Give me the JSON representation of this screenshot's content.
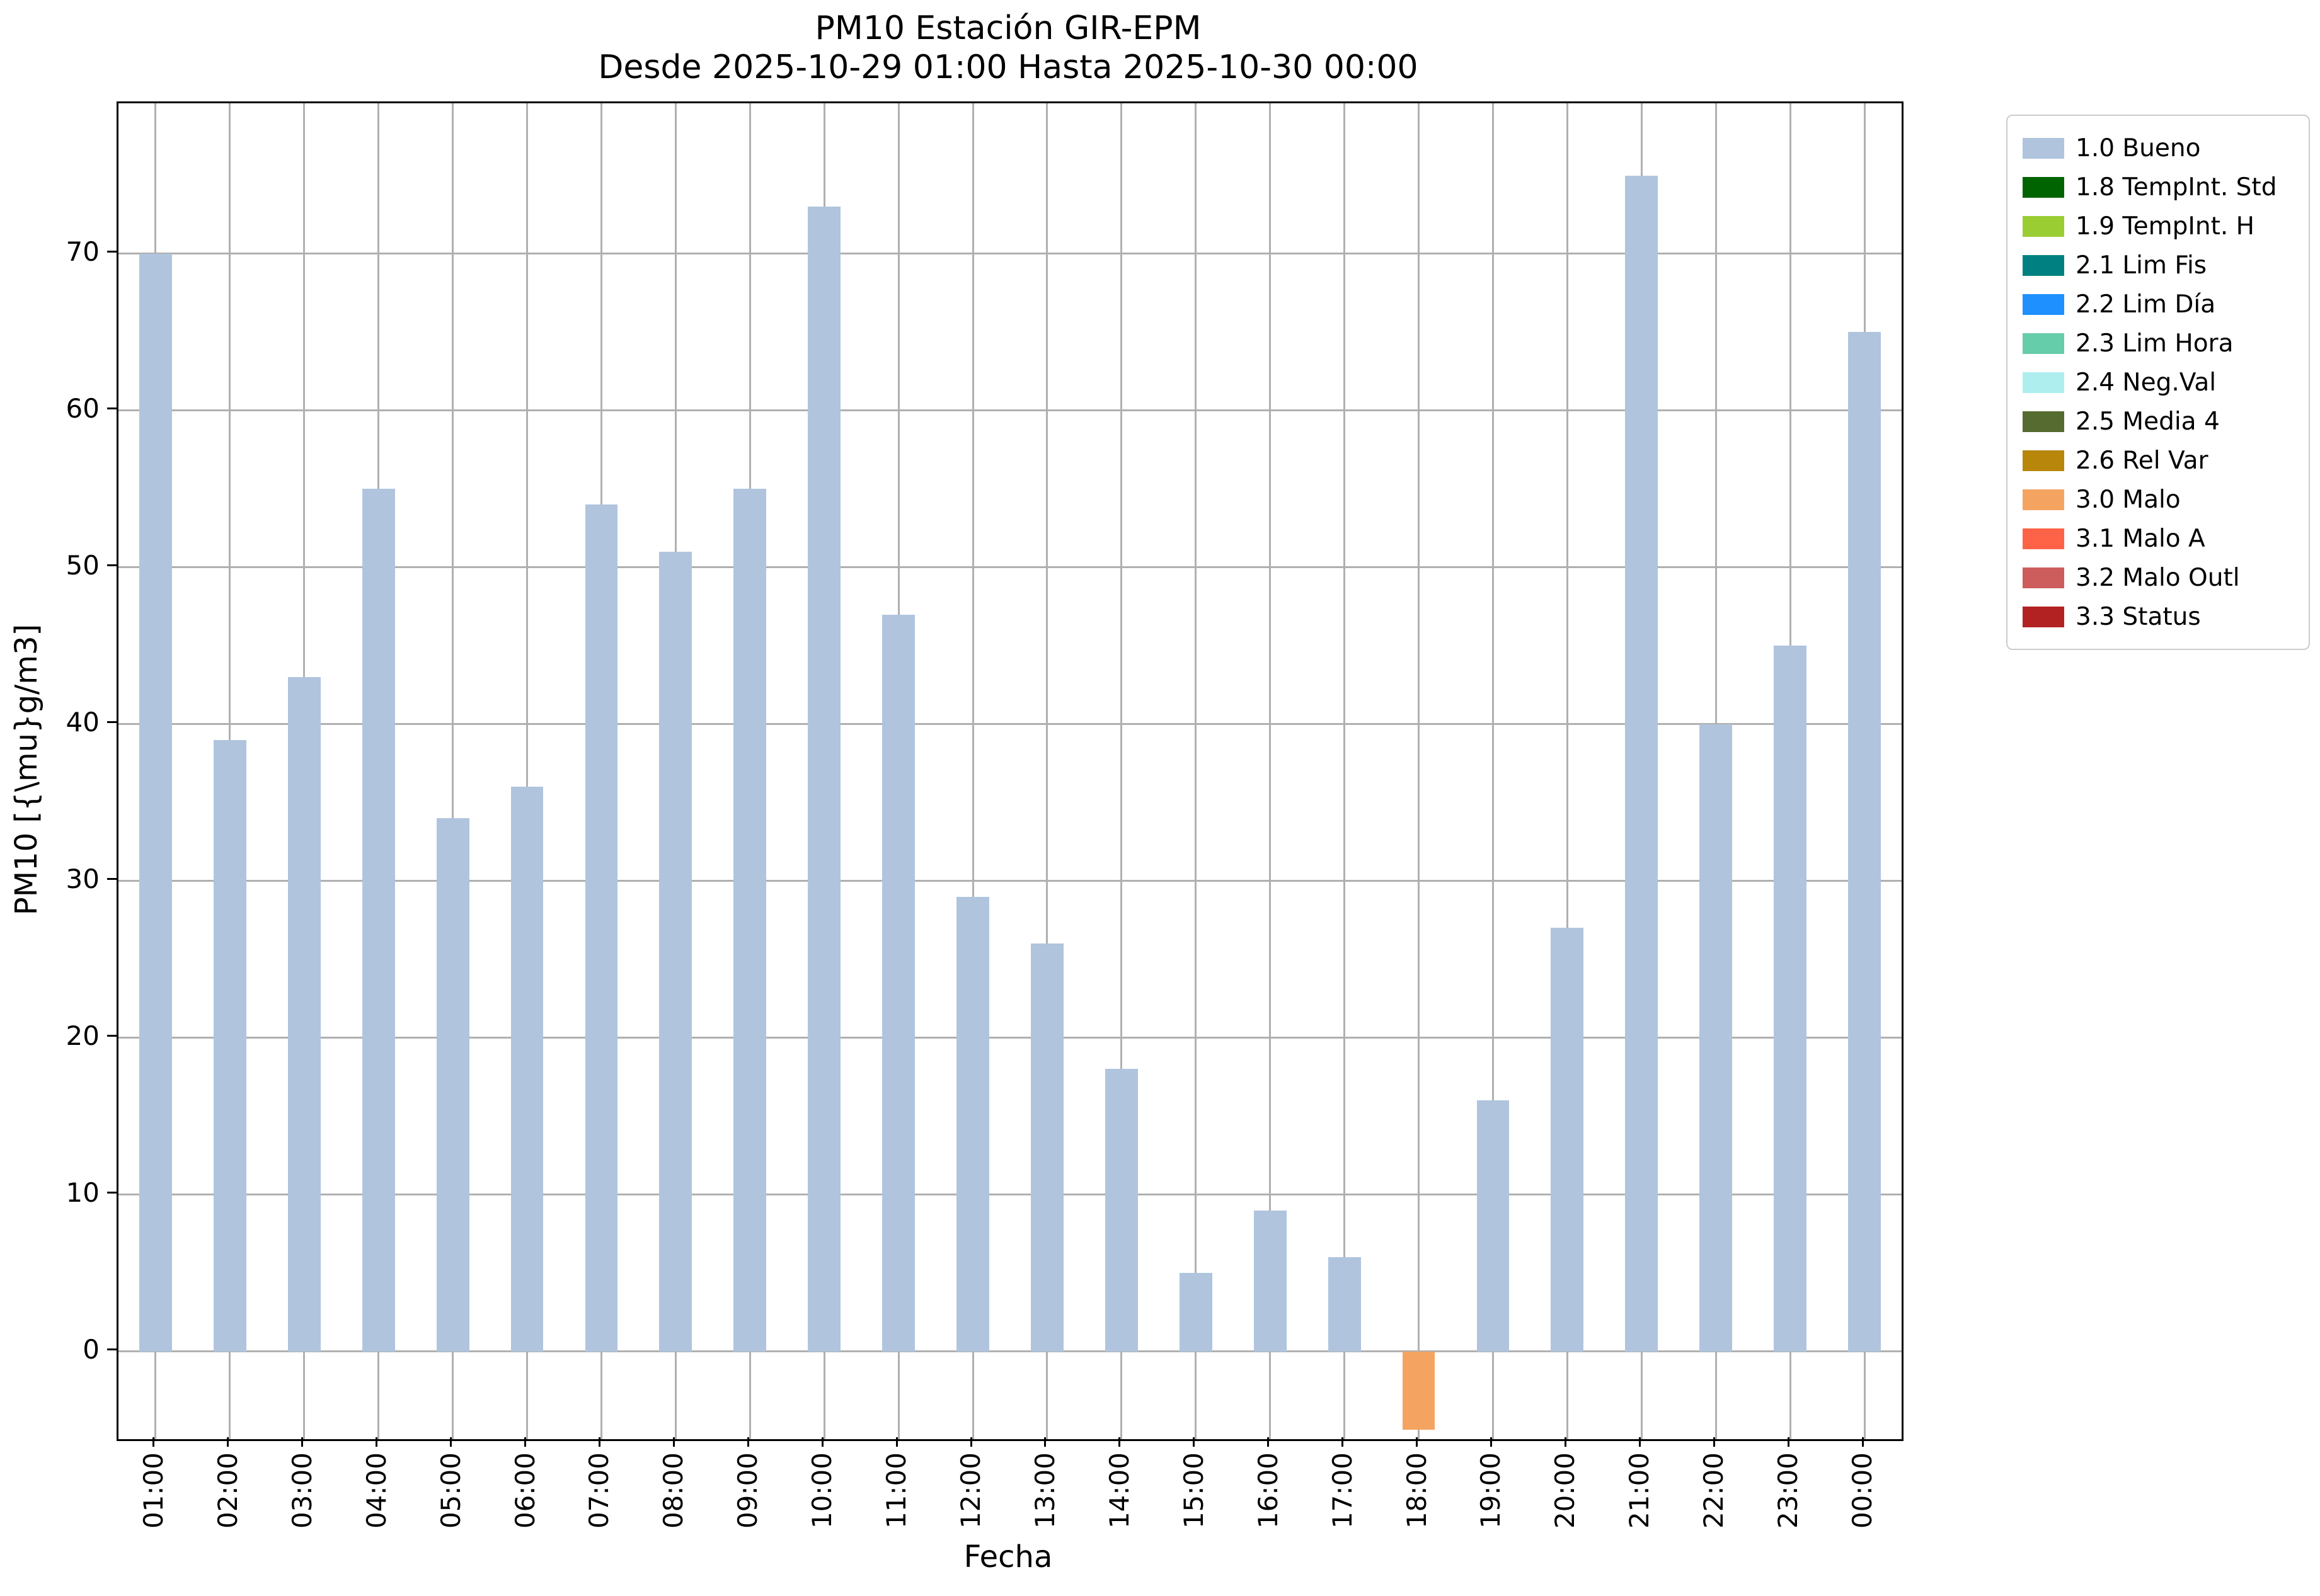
{
  "chart_data": {
    "type": "bar",
    "title": "PM10 Estación GIR-EPM",
    "subtitle": "Desde 2025-10-29 01:00 Hasta 2025-10-30 00:00",
    "xlabel": "Fecha",
    "ylabel": "PM10 [{\\mu}g/m3]",
    "categories": [
      "01:00",
      "02:00",
      "03:00",
      "04:00",
      "05:00",
      "06:00",
      "07:00",
      "08:00",
      "09:00",
      "10:00",
      "11:00",
      "12:00",
      "13:00",
      "14:00",
      "15:00",
      "16:00",
      "17:00",
      "18:00",
      "19:00",
      "20:00",
      "21:00",
      "22:00",
      "23:00",
      "00:00"
    ],
    "values": [
      70,
      39,
      43,
      55,
      34,
      36,
      54,
      51,
      55,
      73,
      47,
      29,
      26,
      18,
      5,
      9,
      6,
      -5,
      16,
      27,
      75,
      40,
      45,
      65
    ],
    "bar_colors": [
      "#b0c4de",
      "#b0c4de",
      "#b0c4de",
      "#b0c4de",
      "#b0c4de",
      "#b0c4de",
      "#b0c4de",
      "#b0c4de",
      "#b0c4de",
      "#b0c4de",
      "#b0c4de",
      "#b0c4de",
      "#b0c4de",
      "#b0c4de",
      "#b0c4de",
      "#b0c4de",
      "#b0c4de",
      "#f4a460",
      "#b0c4de",
      "#b0c4de",
      "#b0c4de",
      "#b0c4de",
      "#b0c4de",
      "#b0c4de"
    ],
    "default_bar_color": "#b0c4de",
    "yticks": [
      0,
      10,
      20,
      30,
      40,
      50,
      60,
      70
    ],
    "ylim": [
      -5.6,
      79.6
    ],
    "grid": true,
    "grid_color": "#b0b0b0",
    "legend_position": "outside-top-right",
    "legend": [
      {
        "label": "1.0 Bueno",
        "color": "#b0c4de"
      },
      {
        "label": "1.8 TempInt. Std",
        "color": "#006400"
      },
      {
        "label": "1.9 TempInt. H",
        "color": "#9acd32"
      },
      {
        "label": "2.1 Lim Fis",
        "color": "#008080"
      },
      {
        "label": "2.2 Lim Día",
        "color": "#1e90ff"
      },
      {
        "label": "2.3 Lim Hora",
        "color": "#66cdaa"
      },
      {
        "label": "2.4 Neg.Val",
        "color": "#afeeee"
      },
      {
        "label": "2.5 Media 4",
        "color": "#556b2f"
      },
      {
        "label": "2.6 Rel Var",
        "color": "#b8860b"
      },
      {
        "label": "3.0 Malo",
        "color": "#f4a460"
      },
      {
        "label": "3.1 Malo A",
        "color": "#ff6347"
      },
      {
        "label": "3.2 Malo Outl",
        "color": "#cd5c5c"
      },
      {
        "label": "3.3 Status",
        "color": "#b22222"
      }
    ]
  }
}
